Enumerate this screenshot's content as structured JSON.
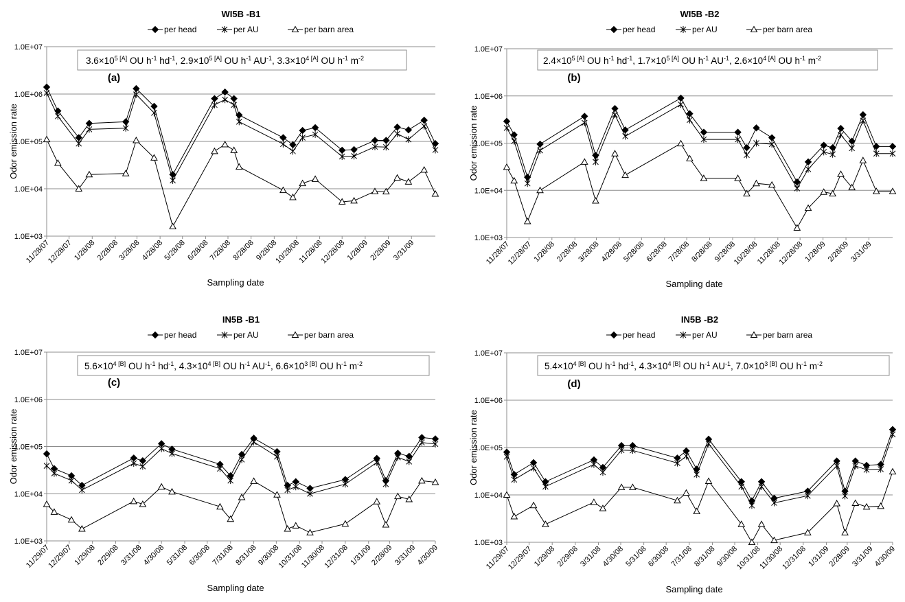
{
  "figure": {
    "ylabel": "Odor emission rate",
    "xlabel": "Sampling date",
    "y_ticks": [
      "1.0E+03",
      "1.0E+04",
      "1.0E+05",
      "1.0E+06",
      "1.0E+07"
    ],
    "legend": [
      "per head",
      "per AU",
      "per barn area"
    ]
  },
  "chart_data": [
    {
      "type": "line",
      "panel": "(a)",
      "title": "WI5B -B1",
      "ylabel": "Odor emission rate",
      "xlabel": "Sampling date",
      "ylim": [
        1000,
        10000000
      ],
      "yscale": "log",
      "grid": true,
      "legend_position": "top",
      "x_range": [
        "2007-11-28",
        "2009-05-02"
      ],
      "x_ticks": [
        "11/28/07",
        "12/28/07",
        "1/28/08",
        "2/28/08",
        "3/28/08",
        "4/28/08",
        "5/28/08",
        "6/28/08",
        "7/28/08",
        "8/28/08",
        "9/28/08",
        "10/28/08",
        "11/28/08",
        "12/28/08",
        "1/28/09",
        "2/28/09",
        "3/31/09"
      ],
      "annotation": {
        "parts": [
          {
            "text": "3.6×10"
          },
          {
            "text": "5 [A]",
            "sup": true
          },
          {
            "text": " OU h"
          },
          {
            "text": "-1",
            "sup": true
          },
          {
            "text": " hd"
          },
          {
            "text": "-1",
            "sup": true
          },
          {
            "text": ", 2.9×10"
          },
          {
            "text": "5 [A]",
            "sup": true
          },
          {
            "text": " OU h"
          },
          {
            "text": "-1",
            "sup": true
          },
          {
            "text": " AU"
          },
          {
            "text": "-1",
            "sup": true
          },
          {
            "text": ", 3.3×10"
          },
          {
            "text": "4 [A]",
            "sup": true
          },
          {
            "text": " OU h"
          },
          {
            "text": "-1",
            "sup": true
          },
          {
            "text": " m"
          },
          {
            "text": "-2",
            "sup": true
          }
        ]
      },
      "dates": [
        "2007-11-28",
        "2007-12-13",
        "2008-01-10",
        "2008-01-24",
        "2008-03-13",
        "2008-03-27",
        "2008-04-20",
        "2008-05-15",
        "2008-07-10",
        "2008-07-24",
        "2008-08-05",
        "2008-08-12",
        "2008-10-10",
        "2008-10-23",
        "2008-11-05",
        "2008-11-22",
        "2008-12-28",
        "2009-01-13",
        "2009-02-10",
        "2009-02-25",
        "2009-03-12",
        "2009-03-27",
        "2009-04-17",
        "2009-05-02"
      ],
      "series": [
        {
          "name": "per head",
          "marker": "diamond",
          "values": [
            1400000,
            440000,
            120000,
            240000,
            260000,
            1300000,
            550000,
            20000,
            800000,
            1100000,
            800000,
            360000,
            120000,
            85000,
            170000,
            195000,
            65000,
            67000,
            105000,
            105000,
            200000,
            175000,
            280000,
            90000
          ]
        },
        {
          "name": "per AU",
          "marker": "star",
          "values": [
            1050000,
            340000,
            90000,
            180000,
            190000,
            980000,
            400000,
            15000,
            590000,
            760000,
            590000,
            260000,
            88000,
            62000,
            120000,
            140000,
            48000,
            49000,
            77000,
            76000,
            145000,
            110000,
            210000,
            66000
          ]
        },
        {
          "name": "per barn area",
          "marker": "triangle",
          "values": [
            110000,
            35000,
            10000,
            20000,
            21000,
            105000,
            45000,
            1600,
            62000,
            86000,
            65000,
            29000,
            9300,
            6600,
            13000,
            16000,
            5300,
            5600,
            8800,
            8700,
            17000,
            14000,
            25000,
            7800
          ]
        }
      ]
    },
    {
      "type": "line",
      "panel": "(b)",
      "title": "WI5B -B2",
      "ylabel": "Odor emission rate",
      "xlabel": "Sampling date",
      "ylim": [
        1000,
        10000000
      ],
      "yscale": "log",
      "grid": true,
      "legend_position": "top",
      "x_range": [
        "2007-11-28",
        "2009-05-02"
      ],
      "x_ticks": [
        "11/28/07",
        "12/28/07",
        "1/28/08",
        "2/28/08",
        "3/28/08",
        "4/28/08",
        "5/28/08",
        "6/28/08",
        "7/28/08",
        "8/28/08",
        "9/28/08",
        "10/28/08",
        "11/28/08",
        "12/28/08",
        "1/28/09",
        "2/28/09",
        "3/31/09"
      ],
      "annotation": {
        "parts": [
          {
            "text": "2.4×10"
          },
          {
            "text": "5 [A]",
            "sup": true
          },
          {
            "text": " OU h"
          },
          {
            "text": "-1",
            "sup": true
          },
          {
            "text": " hd"
          },
          {
            "text": "-1",
            "sup": true
          },
          {
            "text": ", 1.7×10"
          },
          {
            "text": "5 [A]",
            "sup": true
          },
          {
            "text": " OU h"
          },
          {
            "text": "-1",
            "sup": true
          },
          {
            "text": " AU"
          },
          {
            "text": "-1",
            "sup": true
          },
          {
            "text": ", 2.6×10"
          },
          {
            "text": "4 [A]",
            "sup": true
          },
          {
            "text": " OU h"
          },
          {
            "text": "-1",
            "sup": true
          },
          {
            "text": " m"
          },
          {
            "text": "-2",
            "sup": true
          }
        ]
      },
      "dates": [
        "2007-11-28",
        "2007-12-08",
        "2007-12-26",
        "2008-01-12",
        "2008-03-12",
        "2008-03-27",
        "2008-04-22",
        "2008-05-06",
        "2008-07-20",
        "2008-08-01",
        "2008-08-20",
        "2008-10-05",
        "2008-10-17",
        "2008-10-30",
        "2008-11-20",
        "2008-12-24",
        "2009-01-08",
        "2009-01-29",
        "2009-02-10",
        "2009-02-21",
        "2009-03-08",
        "2009-03-23",
        "2009-04-10",
        "2009-05-02"
      ],
      "series": [
        {
          "name": "per head",
          "marker": "diamond",
          "values": [
            290000,
            150000,
            19000,
            95000,
            370000,
            55000,
            540000,
            190000,
            900000,
            420000,
            170000,
            170000,
            80000,
            210000,
            130000,
            15000,
            40000,
            90000,
            80000,
            205000,
            110000,
            400000,
            85000,
            85000
          ]
        },
        {
          "name": "per AU",
          "marker": "star",
          "values": [
            210000,
            110000,
            14000,
            70000,
            270000,
            40000,
            400000,
            140000,
            660000,
            310000,
            120000,
            120000,
            56000,
            100000,
            95000,
            11000,
            28000,
            65000,
            58000,
            150000,
            78000,
            300000,
            60000,
            60000
          ]
        },
        {
          "name": "per barn area",
          "marker": "triangle",
          "values": [
            31000,
            16000,
            2200,
            10000,
            40000,
            6000,
            60000,
            21000,
            98000,
            47000,
            18000,
            18000,
            8500,
            14000,
            13000,
            1600,
            4200,
            9200,
            8500,
            22000,
            11500,
            43000,
            9500,
            9500
          ]
        }
      ]
    },
    {
      "type": "line",
      "panel": "(c)",
      "title": "IN5B -B1",
      "ylabel": "Odor emission rate",
      "xlabel": "Sampling date",
      "ylim": [
        1000,
        10000000
      ],
      "yscale": "log",
      "grid": true,
      "legend_position": "top",
      "x_range": [
        "2007-11-29",
        "2009-04-30"
      ],
      "x_ticks": [
        "11/29/07",
        "12/29/07",
        "1/29/08",
        "2/29/08",
        "3/31/08",
        "4/30/08",
        "5/31/08",
        "6/30/08",
        "7/31/08",
        "8/31/08",
        "9/30/08",
        "10/31/08",
        "11/30/08",
        "12/31/08",
        "1/31/09",
        "2/28/09",
        "3/31/09",
        "4/30/09"
      ],
      "annotation": {
        "parts": [
          {
            "text": "5.6×10"
          },
          {
            "text": "4 [B]",
            "sup": true
          },
          {
            "text": " OU h"
          },
          {
            "text": "-1",
            "sup": true
          },
          {
            "text": " hd"
          },
          {
            "text": "-1",
            "sup": true
          },
          {
            "text": ", 4.3×10"
          },
          {
            "text": "4 [B]",
            "sup": true
          },
          {
            "text": " OU h"
          },
          {
            "text": "-1",
            "sup": true
          },
          {
            "text": " AU"
          },
          {
            "text": "-1",
            "sup": true
          },
          {
            "text": ", 6.6×10"
          },
          {
            "text": "3 [B]",
            "sup": true
          },
          {
            "text": " OU h"
          },
          {
            "text": "-1",
            "sup": true
          },
          {
            "text": " m"
          },
          {
            "text": "-2",
            "sup": true
          }
        ]
      },
      "dates": [
        "2007-11-29",
        "2007-12-09",
        "2008-01-01",
        "2008-01-15",
        "2008-03-24",
        "2008-04-05",
        "2008-04-30",
        "2008-05-14",
        "2008-07-17",
        "2008-07-31",
        "2008-08-15",
        "2008-08-31",
        "2008-10-01",
        "2008-10-15",
        "2008-10-26",
        "2008-11-14",
        "2008-12-31",
        "2009-02-11",
        "2009-02-23",
        "2009-03-11",
        "2009-03-26",
        "2009-04-12",
        "2009-04-30"
      ],
      "series": [
        {
          "name": "per head",
          "marker": "diamond",
          "values": [
            70000,
            34000,
            24000,
            15000,
            57000,
            50000,
            115000,
            88000,
            42000,
            24000,
            68000,
            150000,
            78000,
            15000,
            18000,
            13000,
            20000,
            56000,
            19000,
            72000,
            62000,
            155000,
            145000
          ]
        },
        {
          "name": "per AU",
          "marker": "star",
          "values": [
            39000,
            27000,
            19000,
            12000,
            44000,
            38000,
            90000,
            71000,
            34000,
            19000,
            53000,
            125000,
            61000,
            12000,
            14000,
            10000,
            16000,
            46000,
            16000,
            59000,
            48000,
            122000,
            113000
          ]
        },
        {
          "name": "per barn area",
          "marker": "triangle",
          "values": [
            6000,
            4100,
            2800,
            1800,
            6900,
            6000,
            14000,
            11000,
            5300,
            2900,
            8400,
            18500,
            9500,
            1800,
            2100,
            1500,
            2300,
            6800,
            2200,
            8800,
            7600,
            18800,
            17500
          ]
        }
      ]
    },
    {
      "type": "line",
      "panel": "(d)",
      "title": "IN5B -B2",
      "ylabel": "Odor emission rate",
      "xlabel": "Sampling date",
      "ylim": [
        1000,
        10000000
      ],
      "yscale": "log",
      "grid": true,
      "legend_position": "top",
      "x_range": [
        "2007-11-29",
        "2009-04-30"
      ],
      "x_ticks": [
        "11/29/07",
        "12/29/07",
        "1/29/08",
        "2/29/08",
        "3/31/08",
        "4/30/08",
        "5/31/08",
        "6/30/08",
        "7/31/08",
        "8/31/08",
        "9/30/08",
        "10/31/08",
        "11/30/08",
        "12/31/08",
        "1/31/09",
        "2/28/09",
        "3/31/09",
        "4/30/09"
      ],
      "annotation": {
        "parts": [
          {
            "text": "5.4×10"
          },
          {
            "text": "4 [B]",
            "sup": true
          },
          {
            "text": " OU h"
          },
          {
            "text": "-1",
            "sup": true
          },
          {
            "text": " hd"
          },
          {
            "text": "-1",
            "sup": true
          },
          {
            "text": ", 4.3×10"
          },
          {
            "text": "4 [B]",
            "sup": true
          },
          {
            "text": " OU h"
          },
          {
            "text": "-1",
            "sup": true
          },
          {
            "text": " AU"
          },
          {
            "text": "-1",
            "sup": true
          },
          {
            "text": ", 7.0×10"
          },
          {
            "text": "3 [B]",
            "sup": true
          },
          {
            "text": " OU h"
          },
          {
            "text": "-1",
            "sup": true
          },
          {
            "text": " m"
          },
          {
            "text": "-2",
            "sup": true
          }
        ]
      },
      "dates": [
        "2007-11-29",
        "2007-12-09",
        "2008-01-04",
        "2008-01-20",
        "2008-03-25",
        "2008-04-06",
        "2008-05-01",
        "2008-05-16",
        "2008-07-15",
        "2008-07-27",
        "2008-08-10",
        "2008-08-26",
        "2008-10-09",
        "2008-10-23",
        "2008-11-05",
        "2008-11-22",
        "2009-01-06",
        "2009-02-14",
        "2009-02-25",
        "2009-03-11",
        "2009-03-26",
        "2009-04-14",
        "2009-04-30"
      ],
      "series": [
        {
          "name": "per head",
          "marker": "diamond",
          "values": [
            80000,
            27000,
            48000,
            19000,
            55000,
            38000,
            110000,
            110000,
            60000,
            85000,
            35000,
            150000,
            19000,
            7500,
            19000,
            8500,
            12000,
            52000,
            12000,
            52000,
            42000,
            44000,
            240000
          ]
        },
        {
          "name": "per AU",
          "marker": "star",
          "values": [
            64000,
            21000,
            37000,
            15000,
            44000,
            30000,
            88000,
            87000,
            47000,
            66000,
            27000,
            120000,
            15000,
            6000,
            15000,
            6800,
            9600,
            41000,
            9500,
            41000,
            34000,
            35000,
            190000
          ]
        },
        {
          "name": "per barn area",
          "marker": "triangle",
          "values": [
            10000,
            3500,
            6000,
            2400,
            7000,
            5200,
            14500,
            14500,
            7600,
            11000,
            4500,
            19500,
            2400,
            1000,
            2400,
            1100,
            1600,
            6600,
            1600,
            6700,
            5600,
            5800,
            31000
          ]
        }
      ]
    }
  ]
}
